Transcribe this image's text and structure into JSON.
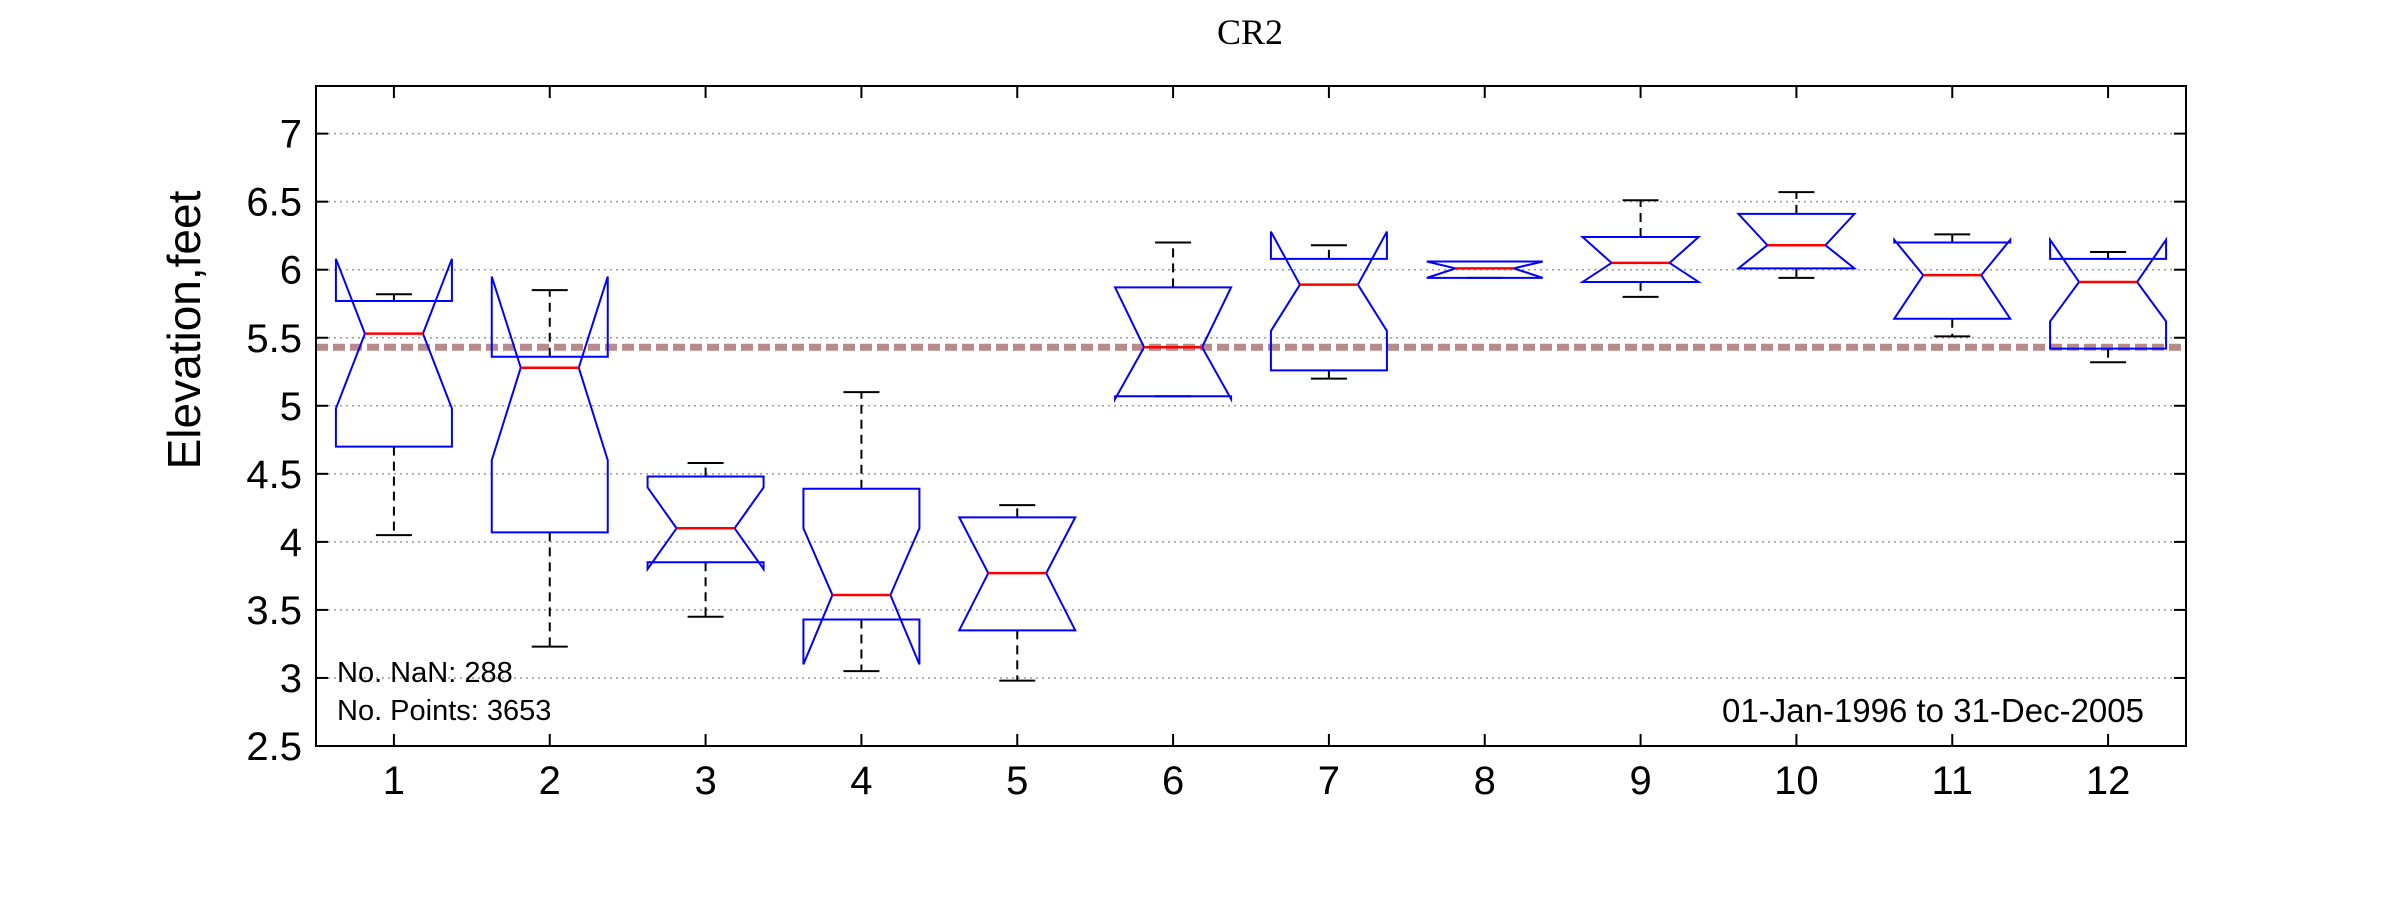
{
  "chart_data": {
    "type": "box",
    "title": "CR2",
    "ylabel": "Elevation,feet",
    "xlabel": "",
    "categories": [
      "1",
      "2",
      "3",
      "4",
      "5",
      "6",
      "7",
      "8",
      "9",
      "10",
      "11",
      "12"
    ],
    "ylim": [
      2.5,
      7.35
    ],
    "yticks": [
      2.5,
      3,
      3.5,
      4,
      4.5,
      5,
      5.5,
      6,
      6.5,
      7
    ],
    "ytick_labels": [
      "2.5",
      "3",
      "3.5",
      "4",
      "4.5",
      "5",
      "5.5",
      "6",
      "6.5",
      "7"
    ],
    "grid": "horizontal-dotted",
    "notched": true,
    "boxes": [
      {
        "month": "1",
        "whisker_low": 4.05,
        "q1": 4.7,
        "median": 5.53,
        "q3": 5.77,
        "whisker_high": 5.82,
        "notch_low": 4.98,
        "notch_high": 6.08
      },
      {
        "month": "2",
        "whisker_low": 3.23,
        "q1": 4.07,
        "median": 5.28,
        "q3": 5.36,
        "whisker_high": 5.85,
        "notch_low": 4.6,
        "notch_high": 5.95
      },
      {
        "month": "3",
        "whisker_low": 3.45,
        "q1": 3.85,
        "median": 4.1,
        "q3": 4.48,
        "whisker_high": 4.58,
        "notch_low": 3.8,
        "notch_high": 4.4
      },
      {
        "month": "4",
        "whisker_low": 3.05,
        "q1": 3.43,
        "median": 3.61,
        "q3": 4.39,
        "whisker_high": 5.1,
        "notch_low": 3.1,
        "notch_high": 4.1
      },
      {
        "month": "5",
        "whisker_low": 2.98,
        "q1": 3.35,
        "median": 3.77,
        "q3": 4.18,
        "whisker_high": 4.27,
        "notch_low": 3.35,
        "notch_high": 4.18
      },
      {
        "month": "6",
        "whisker_low": 5.07,
        "q1": 5.07,
        "median": 5.43,
        "q3": 5.87,
        "whisker_high": 6.2,
        "notch_low": 5.05,
        "notch_high": 5.87
      },
      {
        "month": "7",
        "whisker_low": 5.2,
        "q1": 5.26,
        "median": 5.89,
        "q3": 6.08,
        "whisker_high": 6.18,
        "notch_low": 5.55,
        "notch_high": 6.28
      },
      {
        "month": "8",
        "whisker_low": 5.94,
        "q1": 5.94,
        "median": 6.01,
        "q3": 6.06,
        "whisker_high": 6.06,
        "notch_low": 5.94,
        "notch_high": 6.06
      },
      {
        "month": "9",
        "whisker_low": 5.8,
        "q1": 5.91,
        "median": 6.05,
        "q3": 6.24,
        "whisker_high": 6.51,
        "notch_low": 5.91,
        "notch_high": 6.24
      },
      {
        "month": "10",
        "whisker_low": 5.94,
        "q1": 6.01,
        "median": 6.18,
        "q3": 6.41,
        "whisker_high": 6.57,
        "notch_low": 6.01,
        "notch_high": 6.41
      },
      {
        "month": "11",
        "whisker_low": 5.51,
        "q1": 5.64,
        "median": 5.96,
        "q3": 6.2,
        "whisker_high": 6.26,
        "notch_low": 5.64,
        "notch_high": 6.22
      },
      {
        "month": "12",
        "whisker_low": 5.32,
        "q1": 5.42,
        "median": 5.91,
        "q3": 6.08,
        "whisker_high": 6.13,
        "notch_low": 5.62,
        "notch_high": 6.22
      }
    ],
    "reference_line": {
      "y": 5.43,
      "color": "#b88a8a",
      "style": "dashed"
    },
    "box_color": "#0000ff",
    "median_color": "#ff0000",
    "whisker_color": "#000000",
    "annotations": {
      "nan_count": "No. NaN: 288",
      "point_count": "No. Points: 3653",
      "date_range": "01-Jan-1996 to 31-Dec-2005"
    }
  }
}
